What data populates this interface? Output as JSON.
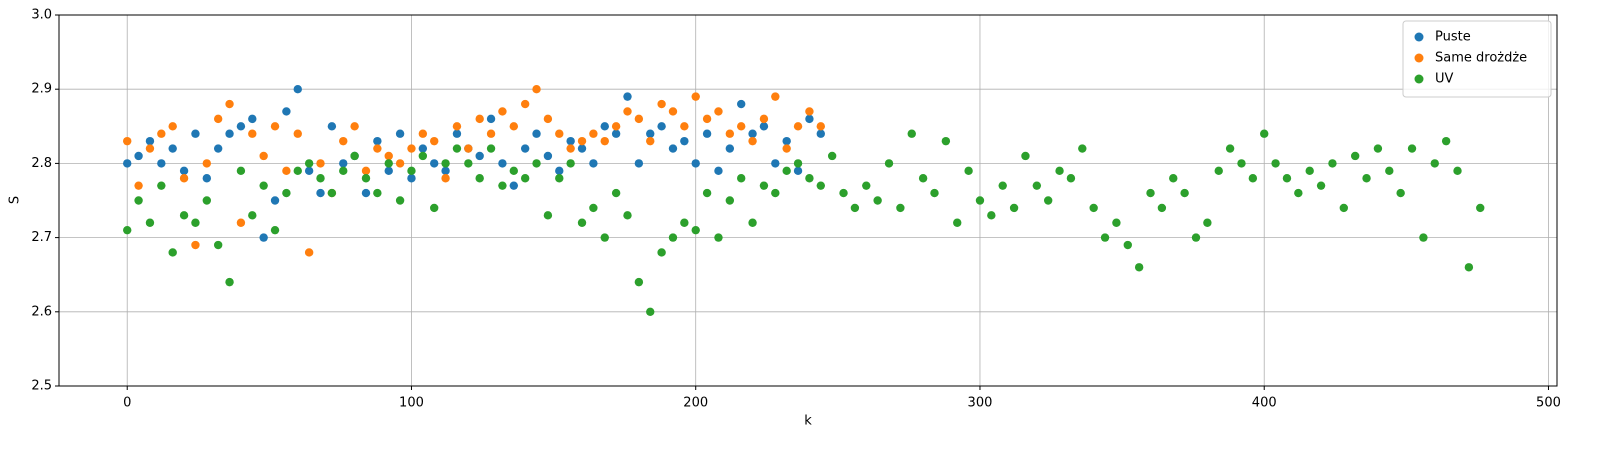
{
  "chart_data": {
    "type": "scatter",
    "xlabel": "k",
    "ylabel": "S",
    "xlim": [
      -24,
      503
    ],
    "xticks": [
      0,
      100,
      200,
      300,
      400,
      500
    ],
    "ylim": [
      2.5,
      3.0
    ],
    "yticks": [
      2.5,
      2.6,
      2.7,
      2.8,
      2.9,
      {
        "value": 3.0,
        "label": "3.0"
      }
    ],
    "grid": true,
    "legend": "upper right",
    "series": [
      {
        "name": "Puste",
        "color": "#1f77b4",
        "x": [
          0,
          4,
          8,
          12,
          16,
          20,
          24,
          28,
          32,
          36,
          40,
          44,
          48,
          52,
          56,
          60,
          64,
          68,
          72,
          76,
          80,
          84,
          88,
          92,
          96,
          100,
          104,
          108,
          112,
          116,
          120,
          124,
          128,
          132,
          136,
          140,
          144,
          148,
          152,
          156,
          160,
          164,
          168,
          172,
          176,
          180,
          184,
          188,
          192,
          196,
          200,
          204,
          208,
          212,
          216,
          220,
          224,
          228,
          232,
          236,
          240,
          244
        ],
        "values": [
          2.8,
          2.81,
          2.83,
          2.8,
          2.82,
          2.79,
          2.84,
          2.78,
          2.82,
          2.84,
          2.85,
          2.86,
          2.7,
          2.75,
          2.87,
          2.9,
          2.79,
          2.76,
          2.85,
          2.8,
          2.81,
          2.76,
          2.83,
          2.79,
          2.84,
          2.78,
          2.82,
          2.8,
          2.79,
          2.84,
          2.82,
          2.81,
          2.86,
          2.8,
          2.77,
          2.82,
          2.84,
          2.81,
          2.79,
          2.83,
          2.82,
          2.8,
          2.85,
          2.84,
          2.89,
          2.8,
          2.84,
          2.85,
          2.82,
          2.83,
          2.8,
          2.84,
          2.79,
          2.82,
          2.88,
          2.84,
          2.85,
          2.8,
          2.83,
          2.79,
          2.86,
          2.84
        ]
      },
      {
        "name": "Same drożdże",
        "color": "#ff7f0e",
        "x": [
          0,
          4,
          8,
          12,
          16,
          20,
          24,
          28,
          32,
          36,
          40,
          44,
          48,
          52,
          56,
          60,
          64,
          68,
          72,
          76,
          80,
          84,
          88,
          92,
          96,
          100,
          104,
          108,
          112,
          116,
          120,
          124,
          128,
          132,
          136,
          140,
          144,
          148,
          152,
          156,
          160,
          164,
          168,
          172,
          176,
          180,
          184,
          188,
          192,
          196,
          200,
          204,
          208,
          212,
          216,
          220,
          224,
          228,
          232,
          236,
          240,
          244
        ],
        "values": [
          2.83,
          2.77,
          2.82,
          2.84,
          2.85,
          2.78,
          2.69,
          2.8,
          2.86,
          2.88,
          2.72,
          2.84,
          2.81,
          2.85,
          2.79,
          2.84,
          2.68,
          2.8,
          2.76,
          2.83,
          2.85,
          2.79,
          2.82,
          2.81,
          2.8,
          2.82,
          2.84,
          2.83,
          2.78,
          2.85,
          2.82,
          2.86,
          2.84,
          2.87,
          2.85,
          2.88,
          2.9,
          2.86,
          2.84,
          2.82,
          2.83,
          2.84,
          2.83,
          2.85,
          2.87,
          2.86,
          2.83,
          2.88,
          2.87,
          2.85,
          2.89,
          2.86,
          2.87,
          2.84,
          2.85,
          2.83,
          2.86,
          2.89,
          2.82,
          2.85,
          2.87,
          2.85
        ]
      },
      {
        "name": "UV",
        "color": "#2ca02c",
        "x": [
          0,
          4,
          8,
          12,
          16,
          20,
          24,
          28,
          32,
          36,
          40,
          44,
          48,
          52,
          56,
          60,
          64,
          68,
          72,
          76,
          80,
          84,
          88,
          92,
          96,
          100,
          104,
          108,
          112,
          116,
          120,
          124,
          128,
          132,
          136,
          140,
          144,
          148,
          152,
          156,
          160,
          164,
          168,
          172,
          176,
          180,
          184,
          188,
          192,
          196,
          200,
          204,
          208,
          212,
          216,
          220,
          224,
          228,
          232,
          236,
          240,
          244,
          248,
          252,
          256,
          260,
          264,
          268,
          272,
          276,
          280,
          284,
          288,
          292,
          296,
          300,
          304,
          308,
          312,
          316,
          320,
          324,
          328,
          332,
          336,
          340,
          344,
          348,
          352,
          356,
          360,
          364,
          368,
          372,
          376,
          380,
          384,
          388,
          392,
          396,
          400,
          404,
          408,
          412,
          416,
          420,
          424,
          428,
          432,
          436,
          440,
          444,
          448,
          452,
          456,
          460,
          464,
          468,
          472,
          476
        ],
        "values": [
          2.71,
          2.75,
          2.72,
          2.77,
          2.68,
          2.73,
          2.72,
          2.75,
          2.69,
          2.64,
          2.79,
          2.73,
          2.77,
          2.71,
          2.76,
          2.79,
          2.8,
          2.78,
          2.76,
          2.79,
          2.81,
          2.78,
          2.76,
          2.8,
          2.75,
          2.79,
          2.81,
          2.74,
          2.8,
          2.82,
          2.8,
          2.78,
          2.82,
          2.77,
          2.79,
          2.78,
          2.8,
          2.73,
          2.78,
          2.8,
          2.72,
          2.74,
          2.7,
          2.76,
          2.73,
          2.64,
          2.6,
          2.68,
          2.7,
          2.72,
          2.71,
          2.76,
          2.7,
          2.75,
          2.78,
          2.72,
          2.77,
          2.76,
          2.79,
          2.8,
          2.78,
          2.77,
          2.81,
          2.76,
          2.74,
          2.77,
          2.75,
          2.8,
          2.74,
          2.84,
          2.78,
          2.76,
          2.83,
          2.72,
          2.79,
          2.75,
          2.73,
          2.77,
          2.74,
          2.81,
          2.77,
          2.75,
          2.79,
          2.78,
          2.82,
          2.74,
          2.7,
          2.72,
          2.69,
          2.66,
          2.76,
          2.74,
          2.78,
          2.76,
          2.7,
          2.72,
          2.79,
          2.82,
          2.8,
          2.78,
          2.84,
          2.8,
          2.78,
          2.76,
          2.79,
          2.77,
          2.8,
          2.74,
          2.81,
          2.78,
          2.82,
          2.79,
          2.76,
          2.82,
          2.7,
          2.8,
          2.83,
          2.79,
          2.66,
          2.74
        ]
      }
    ]
  }
}
